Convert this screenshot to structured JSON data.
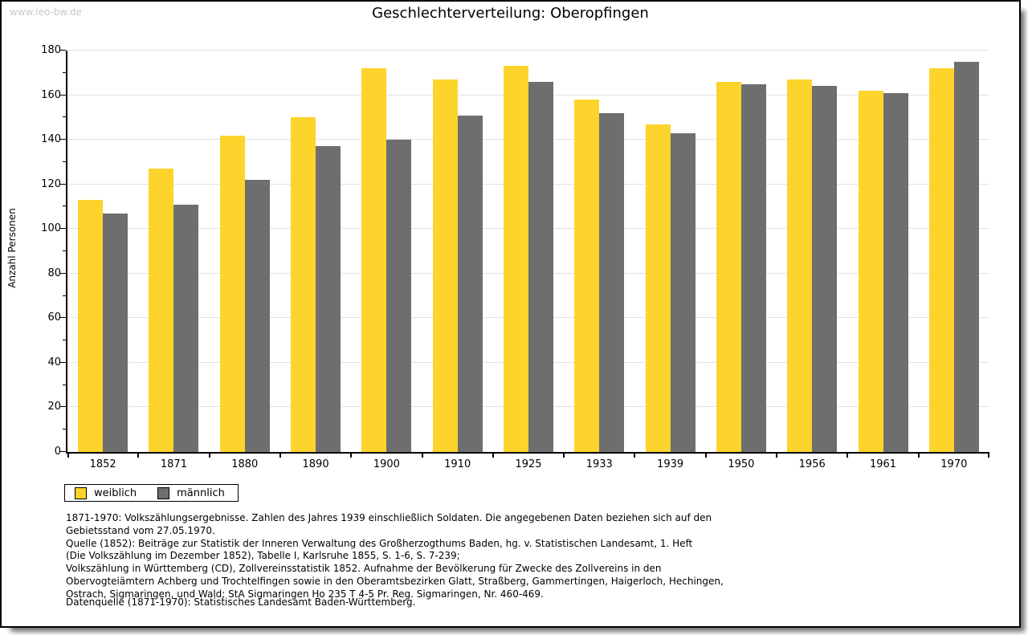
{
  "watermark": "www.leo-bw.de",
  "chart_data": {
    "type": "bar",
    "title": "Geschlechterverteilung: Oberopfingen",
    "ylabel": "Anzahl Personen",
    "xlabel": "",
    "ylim": [
      0,
      180
    ],
    "ytick_step": 20,
    "yminor_step": 10,
    "grid": true,
    "legend_position": "bottom-left",
    "categories": [
      "1852",
      "1871",
      "1880",
      "1890",
      "1900",
      "1910",
      "1925",
      "1933",
      "1939",
      "1950",
      "1956",
      "1961",
      "1970"
    ],
    "series": [
      {
        "name": "weiblich",
        "color": "#fcd42c",
        "values": [
          113,
          127,
          142,
          150,
          172,
          167,
          173,
          158,
          147,
          166,
          167,
          162,
          172
        ]
      },
      {
        "name": "männlich",
        "color": "#6e6e6e",
        "values": [
          107,
          111,
          122,
          137,
          140,
          151,
          166,
          152,
          143,
          165,
          164,
          161,
          175
        ]
      }
    ]
  },
  "footer": {
    "block1": "1871-1970: Volkszählungsergebnisse. Zahlen des Jahres 1939 einschließlich Soldaten. Die angegebenen Daten beziehen sich auf den\nGebietsstand vom 27.05.1970.\nQuelle (1852): Beiträge zur Statistik der Inneren Verwaltung des Großherzogthums Baden, hg. v. Statistischen Landesamt, 1. Heft\n(Die Volkszählung im Dezember 1852), Tabelle I, Karlsruhe 1855, S. 1-6, S. 7-239;\nVolkszählung in Württemberg (CD), Zollvereinsstatistik 1852. Aufnahme der Bevölkerung für Zwecke des Zollvereins in den\nObervogteiämtern Achberg und Trochtelfingen sowie in den Oberamtsbezirken Glatt, Straßberg, Gammertingen, Haigerloch, Hechingen,\nOstrach, Sigmaringen, und Wald; StA Sigmaringen Ho 235 T 4-5 Pr. Reg. Sigmaringen, Nr. 460-469.",
    "block2": "Datenquelle (1871-1970): Statistisches Landesamt Baden-Württemberg."
  }
}
